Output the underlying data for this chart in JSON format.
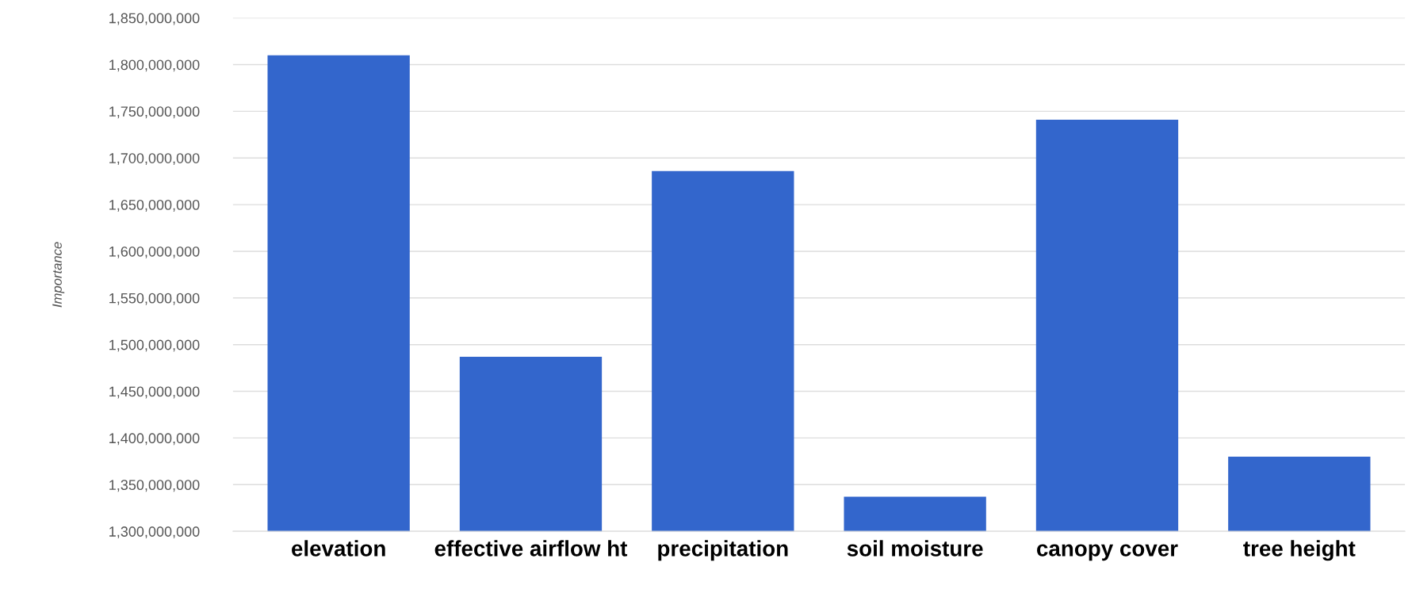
{
  "chart_data": {
    "type": "bar",
    "ylabel": "Importance",
    "categories": [
      "elevation",
      "effective airflow ht",
      "precipitation",
      "soil moisture",
      "canopy cover",
      "tree height"
    ],
    "values": [
      1810000000,
      1487000000,
      1686000000,
      1337000000,
      1741000000,
      1380000000
    ],
    "color": "#3366cc",
    "ylim": [
      1300000000,
      1850000000
    ],
    "yticks": [
      {
        "value": 1300000000,
        "label": "1,300,000,000"
      },
      {
        "value": 1350000000,
        "label": "1,350,000,000"
      },
      {
        "value": 1400000000,
        "label": "1,400,000,000"
      },
      {
        "value": 1450000000,
        "label": "1,450,000,000"
      },
      {
        "value": 1500000000,
        "label": "1,500,000,000"
      },
      {
        "value": 1550000000,
        "label": "1,550,000,000"
      },
      {
        "value": 1600000000,
        "label": "1,600,000,000"
      },
      {
        "value": 1650000000,
        "label": "1,650,000,000"
      },
      {
        "value": 1700000000,
        "label": "1,700,000,000"
      },
      {
        "value": 1750000000,
        "label": "1,750,000,000"
      },
      {
        "value": 1800000000,
        "label": "1,800,000,000"
      },
      {
        "value": 1850000000,
        "label": "1,850,000,000"
      }
    ],
    "grid": "y"
  }
}
